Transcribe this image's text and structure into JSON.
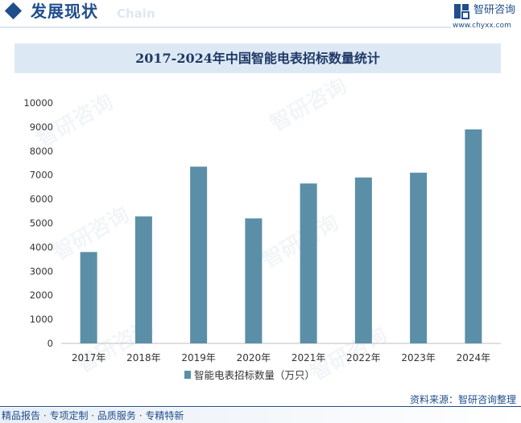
{
  "header": {
    "title": "发展现状",
    "subtitle": "Chain",
    "brand_name": "智研咨询",
    "brand_url": "www.chyxx.com"
  },
  "watermark": "智研咨询",
  "footer": {
    "source": "资料来源：智研咨询整理",
    "tags": "精品报告 · 专项定制 · 品质服务 · 专精特新"
  },
  "colors": {
    "bar": "#5b8fa8",
    "brand": "#1f4e8c",
    "title_band": "#dce9f5"
  },
  "chart_data": {
    "type": "bar",
    "title": "2017-2024年中国智能电表招标数量统计",
    "categories": [
      "2017年",
      "2018年",
      "2019年",
      "2020年",
      "2021年",
      "2022年",
      "2023年",
      "2024年"
    ],
    "series": [
      {
        "name": "智能电表招标数量（万只）",
        "values": [
          3800,
          5280,
          7350,
          5200,
          6650,
          6900,
          7100,
          8900
        ]
      }
    ],
    "ylim": [
      0,
      10000
    ],
    "yticks": [
      0,
      1000,
      2000,
      3000,
      4000,
      5000,
      6000,
      7000,
      8000,
      9000,
      10000
    ],
    "legend_position": "bottom",
    "grid": false
  }
}
